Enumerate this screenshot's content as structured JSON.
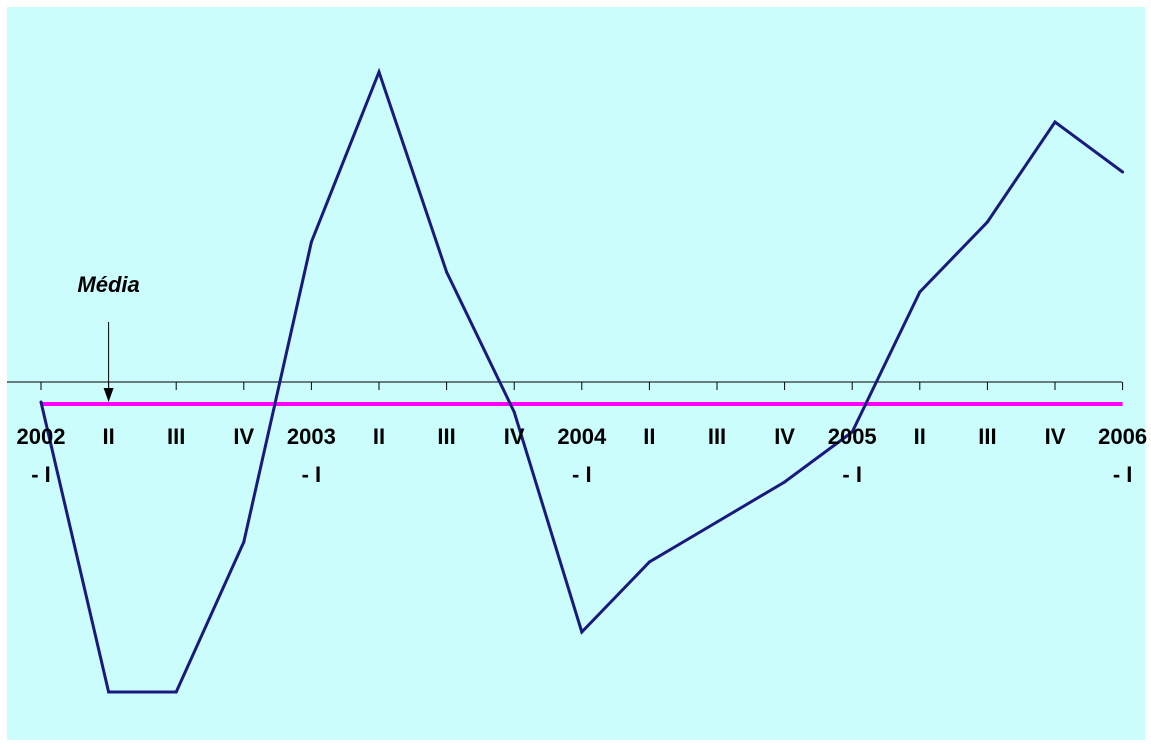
{
  "chart_data": {
    "type": "line",
    "categories": [
      "2002 - I",
      "II",
      "III",
      "IV",
      "2003 - I",
      "II",
      "III",
      "IV",
      "2004 - I",
      "II",
      "III",
      "IV",
      "2005 - I",
      "II",
      "III",
      "IV",
      "2006 - I"
    ],
    "category_labels": [
      [
        "2002",
        "- I"
      ],
      [
        "II"
      ],
      [
        "III"
      ],
      [
        "IV"
      ],
      [
        "2003",
        "- I"
      ],
      [
        "II"
      ],
      [
        "III"
      ],
      [
        "IV"
      ],
      [
        "2004",
        "- I"
      ],
      [
        "II"
      ],
      [
        "III"
      ],
      [
        "IV"
      ],
      [
        "2005",
        "- I"
      ],
      [
        "II"
      ],
      [
        "III"
      ],
      [
        "IV"
      ],
      [
        "2006",
        "- I"
      ]
    ],
    "series": [
      {
        "values": [
          -0.2,
          -3.1,
          -3.1,
          -1.6,
          1.4,
          3.1,
          1.1,
          -0.3,
          -2.5,
          -1.8,
          -1.4,
          -1.0,
          -0.5,
          0.9,
          1.6,
          2.6,
          2.1
        ],
        "color": "#1a1a7e"
      }
    ],
    "reference_line": {
      "value": -0.22,
      "color": "#ff00ff"
    },
    "annotation": {
      "text": "Média",
      "arrow_category": "II"
    },
    "ylim": [
      -3.5,
      3.5
    ],
    "xlabel": "",
    "ylabel": "",
    "title": "",
    "grid": false,
    "legend": "none",
    "background_color": "#ccfdfd",
    "axis_color": "#000000"
  }
}
